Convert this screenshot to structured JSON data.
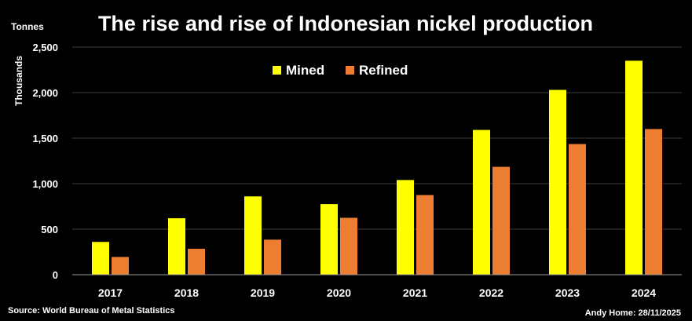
{
  "chart_data": {
    "type": "bar",
    "title": "The rise and rise of Indonesian nickel production",
    "unit_label": "Tonnes",
    "ylabel": "Thousands",
    "xlabel": "",
    "categories": [
      "2017",
      "2018",
      "2019",
      "2020",
      "2021",
      "2022",
      "2023",
      "2024"
    ],
    "series": [
      {
        "name": "Mined",
        "color": "#ffff00",
        "values": [
          360,
          620,
          860,
          775,
          1040,
          1590,
          2030,
          2350
        ]
      },
      {
        "name": "Refined",
        "color": "#ed7d31",
        "values": [
          195,
          285,
          385,
          625,
          875,
          1185,
          1435,
          1600
        ]
      }
    ],
    "ylim": [
      0,
      2500
    ],
    "yticks": [
      0,
      500,
      1000,
      1500,
      2000,
      2500
    ],
    "ytick_labels": [
      "0",
      "500",
      "1,000",
      "1,500",
      "2,000",
      "2,500"
    ],
    "grid": true,
    "legend_position": "top-center"
  },
  "source": "Source: World Bureau of Metal Statistics",
  "credit": "Andy Home: 28/11/2025"
}
